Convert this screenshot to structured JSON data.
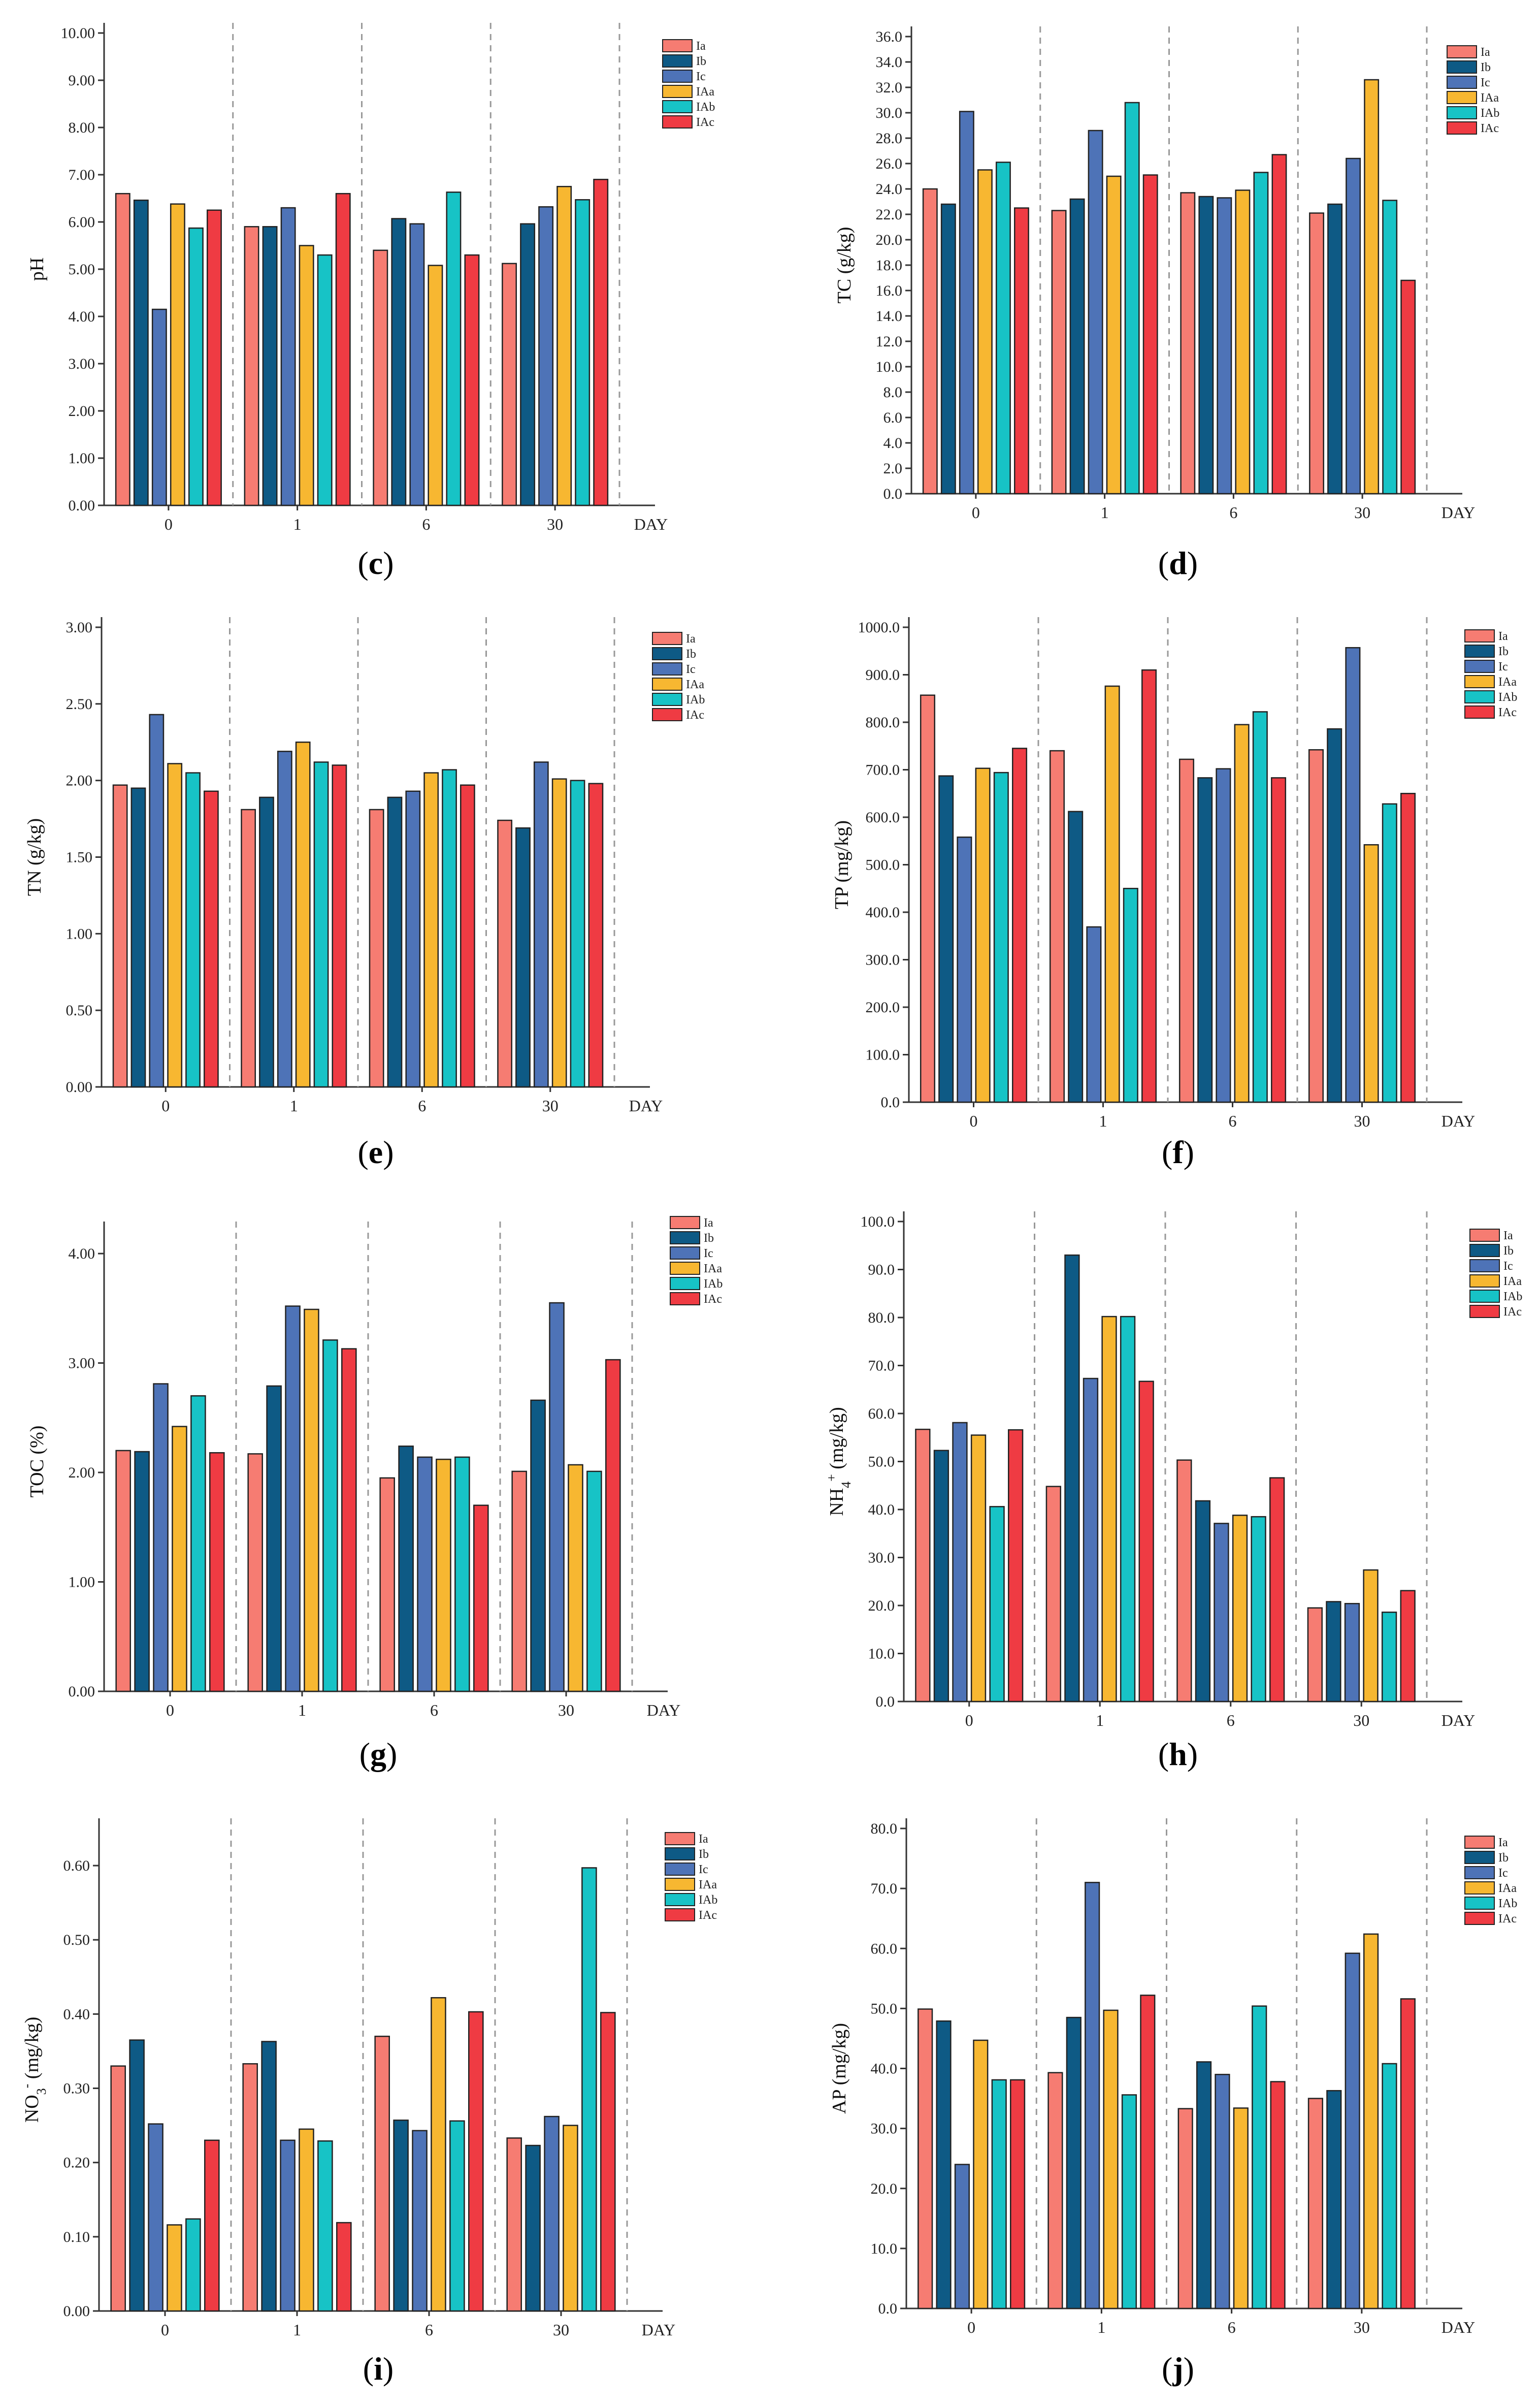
{
  "figure": {
    "day_label": "DAY",
    "categories": [
      "0",
      "1",
      "6",
      "30"
    ],
    "series_names": [
      "Ia",
      "Ib",
      "Ic",
      "IAa",
      "IAb",
      "IAc"
    ],
    "colors": [
      "#F67C72",
      "#0E5A85",
      "#4E73B7",
      "#F7B731",
      "#17C3C6",
      "#EF3B43"
    ]
  },
  "chart_data": [
    {
      "type": "bar",
      "panel": "c",
      "label": "(c)",
      "ylabel": "pH",
      "ylim": [
        0,
        10
      ],
      "ystep": 1,
      "ydec": 2,
      "categories": [
        "0",
        "1",
        "6",
        "30"
      ],
      "series": [
        {
          "name": "Ia",
          "values": [
            6.6,
            5.9,
            5.4,
            5.12
          ]
        },
        {
          "name": "Ib",
          "values": [
            6.46,
            5.9,
            6.07,
            5.96
          ]
        },
        {
          "name": "Ic",
          "values": [
            4.15,
            6.3,
            5.96,
            6.32
          ]
        },
        {
          "name": "IAa",
          "values": [
            6.38,
            5.5,
            5.08,
            6.75
          ]
        },
        {
          "name": "IAb",
          "values": [
            5.87,
            5.3,
            6.63,
            6.47
          ]
        },
        {
          "name": "IAc",
          "values": [
            6.25,
            6.6,
            5.3,
            6.9
          ]
        }
      ]
    },
    {
      "type": "bar",
      "panel": "d",
      "label": "(d)",
      "ylabel": "TC (g/kg)",
      "ylim": [
        0,
        36
      ],
      "ystep": 2,
      "ydec": 1,
      "categories": [
        "0",
        "1",
        "6",
        "30"
      ],
      "series": [
        {
          "name": "Ia",
          "values": [
            24.0,
            22.3,
            23.7,
            22.1
          ]
        },
        {
          "name": "Ib",
          "values": [
            22.8,
            23.2,
            23.4,
            22.8
          ]
        },
        {
          "name": "Ic",
          "values": [
            30.1,
            28.6,
            23.3,
            26.4
          ]
        },
        {
          "name": "IAa",
          "values": [
            25.5,
            25.0,
            23.9,
            32.6
          ]
        },
        {
          "name": "IAb",
          "values": [
            26.1,
            30.8,
            25.3,
            23.1
          ]
        },
        {
          "name": "IAc",
          "values": [
            22.5,
            25.1,
            26.7,
            16.8
          ]
        }
      ]
    },
    {
      "type": "bar",
      "panel": "e",
      "label": "(e)",
      "ylabel": "TN (g/kg)",
      "ylim": [
        0,
        3
      ],
      "ystep": 0.5,
      "ydec": 2,
      "categories": [
        "0",
        "1",
        "6",
        "30"
      ],
      "series": [
        {
          "name": "Ia",
          "values": [
            1.97,
            1.81,
            1.81,
            1.74
          ]
        },
        {
          "name": "Ib",
          "values": [
            1.95,
            1.89,
            1.89,
            1.69
          ]
        },
        {
          "name": "Ic",
          "values": [
            2.43,
            2.19,
            1.93,
            2.12
          ]
        },
        {
          "name": "IAa",
          "values": [
            2.11,
            2.25,
            2.05,
            2.01
          ]
        },
        {
          "name": "IAb",
          "values": [
            2.05,
            2.12,
            2.07,
            2.0
          ]
        },
        {
          "name": "IAc",
          "values": [
            1.93,
            2.1,
            1.97,
            1.98
          ]
        }
      ]
    },
    {
      "type": "bar",
      "panel": "f",
      "label": "(f)",
      "ylabel": "TP (mg/kg)",
      "ylim": [
        0,
        1000
      ],
      "ystep": 100,
      "ydec": 1,
      "categories": [
        "0",
        "1",
        "6",
        "30"
      ],
      "series": [
        {
          "name": "Ia",
          "values": [
            857,
            740,
            722,
            742
          ]
        },
        {
          "name": "Ib",
          "values": [
            687,
            612,
            683,
            786
          ]
        },
        {
          "name": "Ic",
          "values": [
            558,
            369,
            702,
            957
          ]
        },
        {
          "name": "IAa",
          "values": [
            703,
            876,
            795,
            542
          ]
        },
        {
          "name": "IAb",
          "values": [
            694,
            450,
            822,
            628
          ]
        },
        {
          "name": "IAc",
          "values": [
            745,
            910,
            683,
            650
          ]
        }
      ]
    },
    {
      "type": "bar",
      "panel": "g",
      "label": "(g)",
      "ylabel": "TOC (%)",
      "ylim": [
        0,
        4.2
      ],
      "ystep": 1,
      "ydec": 2,
      "categories": [
        "0",
        "1",
        "6",
        "30"
      ],
      "series": [
        {
          "name": "Ia",
          "values": [
            2.2,
            2.17,
            1.95,
            2.01
          ]
        },
        {
          "name": "Ib",
          "values": [
            2.19,
            2.79,
            2.24,
            2.66
          ]
        },
        {
          "name": "Ic",
          "values": [
            2.81,
            3.52,
            2.14,
            3.55
          ]
        },
        {
          "name": "IAa",
          "values": [
            2.42,
            3.49,
            2.12,
            2.07
          ]
        },
        {
          "name": "IAb",
          "values": [
            2.7,
            3.21,
            2.14,
            2.01
          ]
        },
        {
          "name": "IAc",
          "values": [
            2.18,
            3.13,
            1.7,
            3.03
          ]
        }
      ]
    },
    {
      "type": "bar",
      "panel": "h",
      "label": "(h)",
      "ylabel": "NH4+ (mg/kg)",
      "ylim": [
        0,
        100
      ],
      "ystep": 10,
      "ydec": 1,
      "categories": [
        "0",
        "1",
        "6",
        "30"
      ],
      "series": [
        {
          "name": "Ia",
          "values": [
            56.7,
            44.8,
            50.3,
            19.5
          ]
        },
        {
          "name": "Ib",
          "values": [
            52.3,
            93.0,
            41.8,
            20.8
          ]
        },
        {
          "name": "Ic",
          "values": [
            58.1,
            67.3,
            37.1,
            20.4
          ]
        },
        {
          "name": "IAa",
          "values": [
            55.5,
            80.2,
            38.8,
            27.4
          ]
        },
        {
          "name": "IAb",
          "values": [
            40.6,
            80.2,
            38.5,
            18.6
          ]
        },
        {
          "name": "IAc",
          "values": [
            56.6,
            66.7,
            46.6,
            23.1
          ]
        }
      ]
    },
    {
      "type": "bar",
      "panel": "i",
      "label": "(i)",
      "ylabel": "NO3- (mg/kg)",
      "ylim": [
        0,
        0.65
      ],
      "ystep": 0.1,
      "ydec": 2,
      "categories": [
        "0",
        "1",
        "6",
        "30"
      ],
      "series": [
        {
          "name": "Ia",
          "values": [
            0.33,
            0.333,
            0.37,
            0.233
          ]
        },
        {
          "name": "Ib",
          "values": [
            0.365,
            0.363,
            0.257,
            0.223
          ]
        },
        {
          "name": "Ic",
          "values": [
            0.252,
            0.23,
            0.243,
            0.262
          ]
        },
        {
          "name": "IAa",
          "values": [
            0.116,
            0.245,
            0.422,
            0.25
          ]
        },
        {
          "name": "IAb",
          "values": [
            0.124,
            0.229,
            0.256,
            0.597
          ]
        },
        {
          "name": "IAc",
          "values": [
            0.23,
            0.119,
            0.403,
            0.402
          ]
        }
      ]
    },
    {
      "type": "bar",
      "panel": "j",
      "label": "(j)",
      "ylabel": "AP (mg/kg)",
      "ylim": [
        0,
        80
      ],
      "ystep": 10,
      "ydec": 1,
      "categories": [
        "0",
        "1",
        "6",
        "30"
      ],
      "series": [
        {
          "name": "Ia",
          "values": [
            49.9,
            39.3,
            33.3,
            35.0
          ]
        },
        {
          "name": "Ib",
          "values": [
            47.9,
            48.5,
            41.1,
            36.3
          ]
        },
        {
          "name": "Ic",
          "values": [
            24.0,
            71.0,
            39.0,
            59.2
          ]
        },
        {
          "name": "IAa",
          "values": [
            44.7,
            49.7,
            33.4,
            62.4
          ]
        },
        {
          "name": "IAb",
          "values": [
            38.1,
            35.6,
            50.4,
            40.8
          ]
        },
        {
          "name": "IAc",
          "values": [
            38.1,
            52.2,
            37.8,
            51.6
          ]
        }
      ]
    }
  ]
}
